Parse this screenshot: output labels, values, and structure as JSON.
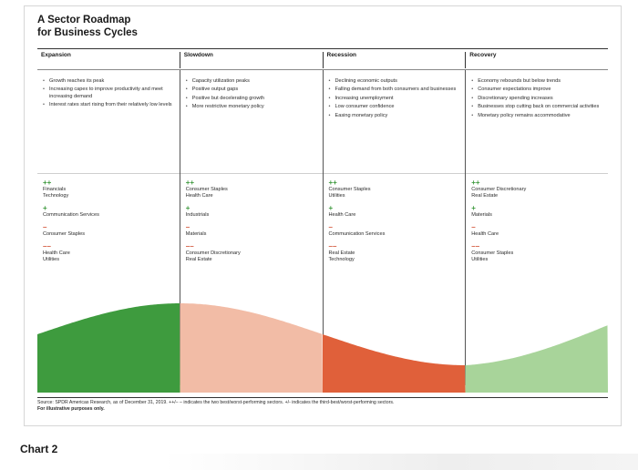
{
  "title": {
    "line1": "A Sector Roadmap",
    "line2": "for Business Cycles"
  },
  "phases": [
    {
      "name": "Expansion",
      "bullets": [
        "Growth reaches its peak",
        "Increasing capex to improve productivity and meet increasing demand",
        "Interest rates start rising from their relatively low levels"
      ],
      "groups": [
        {
          "symbol": "++",
          "kind": "pp",
          "sectors": [
            "Financials",
            "Technology"
          ]
        },
        {
          "symbol": "+",
          "kind": "p",
          "sectors": [
            "Communication Services"
          ]
        },
        {
          "symbol": "–",
          "kind": "m",
          "sectors": [
            "Consumer Staples"
          ]
        },
        {
          "symbol": "––",
          "kind": "mm",
          "sectors": [
            "Health Care",
            "Utilities"
          ]
        }
      ]
    },
    {
      "name": "Slowdown",
      "bullets": [
        "Capacity utilization peaks",
        "Positive output gaps",
        "Positive but decelerating growth",
        "More restrictive monetary policy"
      ],
      "groups": [
        {
          "symbol": "++",
          "kind": "pp",
          "sectors": [
            "Consumer Staples",
            "Health Care"
          ]
        },
        {
          "symbol": "+",
          "kind": "p",
          "sectors": [
            "Industrials"
          ]
        },
        {
          "symbol": "–",
          "kind": "m",
          "sectors": [
            "Materials"
          ]
        },
        {
          "symbol": "––",
          "kind": "mm",
          "sectors": [
            "Consumer Discretionary",
            "Real Estate"
          ]
        }
      ]
    },
    {
      "name": "Recession",
      "bullets": [
        "Declining economic outputs",
        "Falling demand from both consumers and businesses",
        "Increasing unemployment",
        "Low consumer confidence",
        "Easing monetary policy"
      ],
      "groups": [
        {
          "symbol": "++",
          "kind": "pp",
          "sectors": [
            "Consumer Staples",
            "Utilities"
          ]
        },
        {
          "symbol": "+",
          "kind": "p",
          "sectors": [
            "Health Care"
          ]
        },
        {
          "symbol": "–",
          "kind": "m",
          "sectors": [
            "Communication Services"
          ]
        },
        {
          "symbol": "––",
          "kind": "mm",
          "sectors": [
            "Real Estate",
            "Technology"
          ]
        }
      ]
    },
    {
      "name": "Recovery",
      "bullets": [
        "Economy rebounds but below trends",
        "Consumer expectations improve",
        "Discretionary spending increases",
        "Businesses stop cutting back on commercial activities",
        "Monetary policy remains accommodative"
      ],
      "groups": [
        {
          "symbol": "++",
          "kind": "pp",
          "sectors": [
            "Consumer Discretionary",
            "Real Estate"
          ]
        },
        {
          "symbol": "+",
          "kind": "p",
          "sectors": [
            "Materials"
          ]
        },
        {
          "symbol": "–",
          "kind": "m",
          "sectors": [
            "Health Care"
          ]
        },
        {
          "symbol": "––",
          "kind": "mm",
          "sectors": [
            "Consumer Staples",
            "Utilities"
          ]
        }
      ]
    }
  ],
  "source": {
    "text": "Source: SPDR Americas Research, as of December 31, 2019. ++/– – indicates the two best/worst-performing sectors. +/- indicates the third-best/worst-performing sectors.",
    "note": "For illustrative purposes only."
  },
  "caption": "Chart 2",
  "colors": {
    "expansion": "#3e9b3e",
    "slowdown": "#f2bca6",
    "recession": "#e0603a",
    "recovery": "#a8d49a",
    "plus": "#3f9a3f",
    "minus": "#d2553a"
  }
}
